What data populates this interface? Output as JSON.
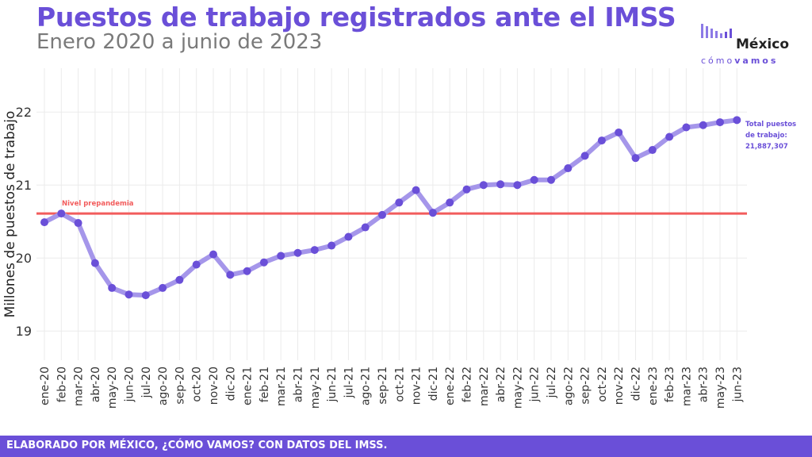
{
  "header": {
    "title": "Puestos de trabajo registrados ante el IMSS",
    "subtitle": "Enero 2020 a junio de 2023"
  },
  "logo": {
    "name": "México",
    "tag_left": "cómo",
    "tag_right": "vamos"
  },
  "footer": {
    "text": "ELABORADO POR MÉXICO, ¿CÓMO VAMOS? CON DATOS DEL IMSS."
  },
  "annotations": {
    "prepandemic_label": "Nivel prepandemia",
    "total_line1": "Total puestos",
    "total_line2": "de trabajo:",
    "total_value": "21,887,307"
  },
  "colors": {
    "accent": "#6a4fd8",
    "line": "#a596ea",
    "points": "#6a4fd8",
    "reference": "#f25c5c",
    "grid": "#ebebeb"
  },
  "chart_data": {
    "type": "line",
    "title": "Puestos de trabajo registrados ante el IMSS",
    "subtitle": "Enero 2020 a junio de 2023",
    "xlabel": "",
    "ylabel": "Millones de puestos de trabajo",
    "ylim": [
      18.6,
      22.6
    ],
    "yticks": [
      19,
      20,
      21,
      22
    ],
    "grid": true,
    "reference_line": {
      "label": "Nivel prepandemia",
      "value": 20.61
    },
    "categories": [
      "ene-20",
      "feb-20",
      "mar-20",
      "abr-20",
      "may-20",
      "jun-20",
      "jul-20",
      "ago-20",
      "sep-20",
      "oct-20",
      "nov-20",
      "dic-20",
      "ene-21",
      "feb-21",
      "mar-21",
      "abr-21",
      "may-21",
      "jun-21",
      "jul-21",
      "ago-21",
      "sep-21",
      "oct-21",
      "nov-21",
      "dic-21",
      "ene-22",
      "feb-22",
      "mar-22",
      "abr-22",
      "may-22",
      "jun-22",
      "jul-22",
      "ago-22",
      "sep-22",
      "oct-22",
      "nov-22",
      "dic-22",
      "ene-23",
      "feb-23",
      "mar-23",
      "abr-23",
      "may-23",
      "jun-23"
    ],
    "series": [
      {
        "values": [
          20.49,
          20.61,
          20.48,
          19.93,
          19.59,
          19.5,
          19.49,
          19.59,
          19.7,
          19.91,
          20.05,
          19.77,
          19.82,
          19.94,
          20.03,
          20.07,
          20.11,
          20.17,
          20.29,
          20.42,
          20.59,
          20.76,
          20.93,
          20.62,
          20.76,
          20.94,
          21.0,
          21.01,
          21.0,
          21.07,
          21.07,
          21.23,
          21.4,
          21.61,
          21.72,
          21.37,
          21.48,
          21.66,
          21.79,
          21.82,
          21.86,
          21.89
        ]
      }
    ]
  }
}
